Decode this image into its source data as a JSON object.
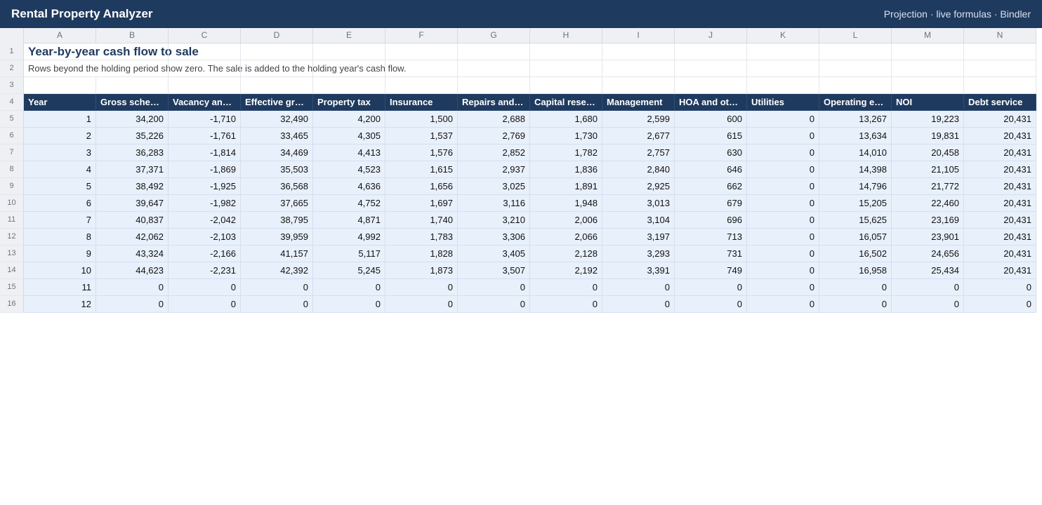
{
  "app": {
    "title": "Rental Property Analyzer",
    "meta": "Projection · live formulas · Bindler"
  },
  "sheet": {
    "column_letters": [
      "A",
      "B",
      "C",
      "D",
      "E",
      "F",
      "G",
      "H",
      "I",
      "J",
      "K",
      "L",
      "M",
      "N"
    ],
    "row_numbers": [
      "1",
      "2",
      "3",
      "4",
      "5",
      "6",
      "7",
      "8",
      "9",
      "10",
      "11",
      "12",
      "13",
      "14",
      "15",
      "16"
    ],
    "title": "Year-by-year cash flow to sale",
    "note": "Rows beyond the holding period show zero. The sale is added to the holding year's cash flow.",
    "headers": [
      "Year",
      "Gross sched…",
      "Vacancy and…",
      "Effective gro…",
      "Property tax",
      "Insurance",
      "Repairs and …",
      "Capital reser…",
      "Management",
      "HOA and other",
      "Utilities",
      "Operating ex…",
      "NOI",
      "Debt service"
    ],
    "rows": [
      [
        "1",
        "34,200",
        "-1,710",
        "32,490",
        "4,200",
        "1,500",
        "2,688",
        "1,680",
        "2,599",
        "600",
        "0",
        "13,267",
        "19,223",
        "20,431"
      ],
      [
        "2",
        "35,226",
        "-1,761",
        "33,465",
        "4,305",
        "1,537",
        "2,769",
        "1,730",
        "2,677",
        "615",
        "0",
        "13,634",
        "19,831",
        "20,431"
      ],
      [
        "3",
        "36,283",
        "-1,814",
        "34,469",
        "4,413",
        "1,576",
        "2,852",
        "1,782",
        "2,757",
        "630",
        "0",
        "14,010",
        "20,458",
        "20,431"
      ],
      [
        "4",
        "37,371",
        "-1,869",
        "35,503",
        "4,523",
        "1,615",
        "2,937",
        "1,836",
        "2,840",
        "646",
        "0",
        "14,398",
        "21,105",
        "20,431"
      ],
      [
        "5",
        "38,492",
        "-1,925",
        "36,568",
        "4,636",
        "1,656",
        "3,025",
        "1,891",
        "2,925",
        "662",
        "0",
        "14,796",
        "21,772",
        "20,431"
      ],
      [
        "6",
        "39,647",
        "-1,982",
        "37,665",
        "4,752",
        "1,697",
        "3,116",
        "1,948",
        "3,013",
        "679",
        "0",
        "15,205",
        "22,460",
        "20,431"
      ],
      [
        "7",
        "40,837",
        "-2,042",
        "38,795",
        "4,871",
        "1,740",
        "3,210",
        "2,006",
        "3,104",
        "696",
        "0",
        "15,625",
        "23,169",
        "20,431"
      ],
      [
        "8",
        "42,062",
        "-2,103",
        "39,959",
        "4,992",
        "1,783",
        "3,306",
        "2,066",
        "3,197",
        "713",
        "0",
        "16,057",
        "23,901",
        "20,431"
      ],
      [
        "9",
        "43,324",
        "-2,166",
        "41,157",
        "5,117",
        "1,828",
        "3,405",
        "2,128",
        "3,293",
        "731",
        "0",
        "16,502",
        "24,656",
        "20,431"
      ],
      [
        "10",
        "44,623",
        "-2,231",
        "42,392",
        "5,245",
        "1,873",
        "3,507",
        "2,192",
        "3,391",
        "749",
        "0",
        "16,958",
        "25,434",
        "20,431"
      ],
      [
        "11",
        "0",
        "0",
        "0",
        "0",
        "0",
        "0",
        "0",
        "0",
        "0",
        "0",
        "0",
        "0",
        "0"
      ],
      [
        "12",
        "0",
        "0",
        "0",
        "0",
        "0",
        "0",
        "0",
        "0",
        "0",
        "0",
        "0",
        "0",
        "0"
      ]
    ]
  }
}
